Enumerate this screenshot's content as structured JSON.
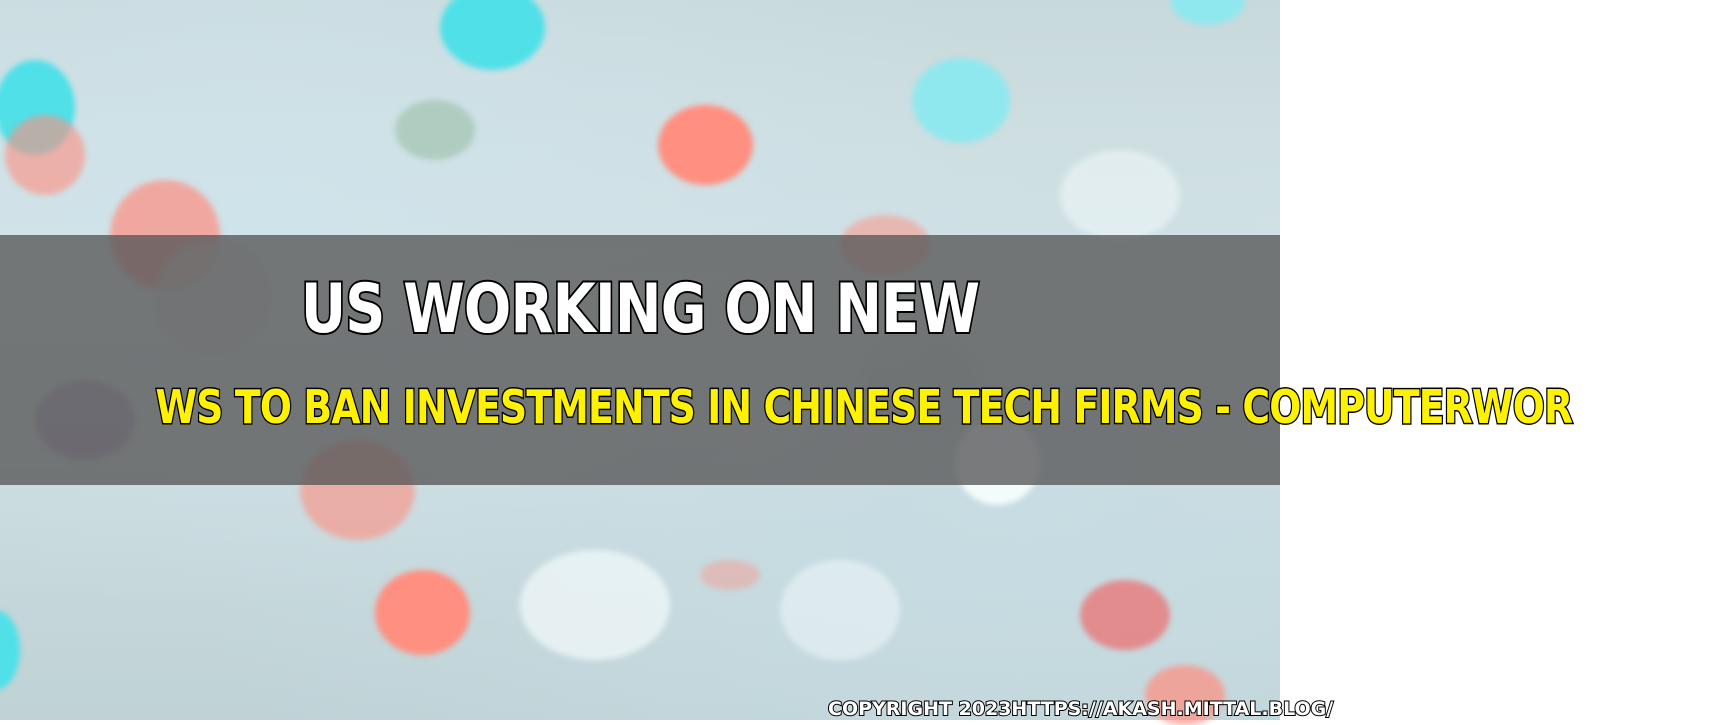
{
  "headline": {
    "line1": "US WORKING ON NEW",
    "line2": "WS TO BAN INVESTMENTS IN CHINESE TECH FIRMS - COMPUTERWOR"
  },
  "footer": {
    "copyright": "COPYRIGHT 2023HTTPS://AKASH.MITTAL.BLOG/"
  },
  "colors": {
    "band": "#5a5a5a",
    "line1_text": "#ffffff",
    "line2_text": "#fff200",
    "outline": "#000000"
  }
}
